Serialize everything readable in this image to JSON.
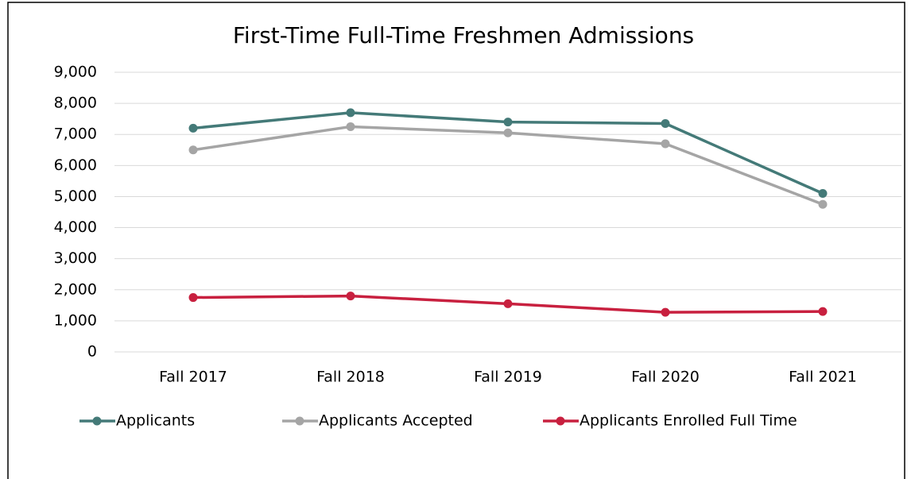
{
  "chart_data": {
    "type": "line",
    "title": "First-Time Full-Time Freshmen Admissions",
    "categories": [
      "Fall 2017",
      "Fall 2018",
      "Fall 2019",
      "Fall 2020",
      "Fall 2021"
    ],
    "series": [
      {
        "name": "Applicants",
        "color": "#447a78",
        "values": [
          7200,
          7700,
          7400,
          7350,
          5100
        ]
      },
      {
        "name": "Applicants Accepted",
        "color": "#a5a5a5",
        "values": [
          6500,
          7250,
          7050,
          6700,
          4750
        ]
      },
      {
        "name": "Applicants Enrolled Full Time",
        "color": "#c8203f",
        "values": [
          1750,
          1800,
          1550,
          1275,
          1300
        ]
      }
    ],
    "ylim": [
      0,
      9000
    ],
    "yticks": [
      0,
      {
        "value": 1000,
        "label": "1,000"
      },
      {
        "value": 2000,
        "label": "2,000"
      },
      {
        "value": 3000,
        "label": "3,000"
      },
      {
        "value": 4000,
        "label": "4,000"
      },
      {
        "value": 5000,
        "label": "5,000"
      },
      {
        "value": 6000,
        "label": "6,000"
      },
      {
        "value": 7000,
        "label": "7,000"
      },
      {
        "value": 8000,
        "label": "8,000"
      },
      {
        "value": 9000,
        "label": "9,000"
      }
    ],
    "grid": true,
    "legend": "bottom"
  }
}
